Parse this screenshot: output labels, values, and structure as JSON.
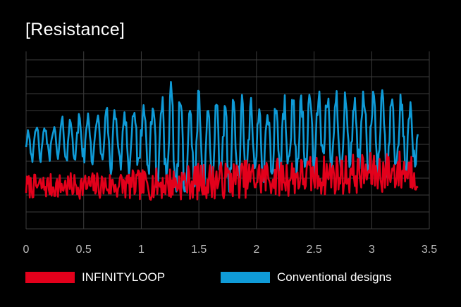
{
  "chart_data": {
    "type": "line",
    "title": "[Resistance]",
    "xlabel": "",
    "ylabel": "",
    "xlim": [
      0,
      3.5
    ],
    "ylim": [
      0,
      10.5
    ],
    "x_ticks": [
      "0",
      "0.5",
      "1",
      "1.5",
      "2",
      "2.5",
      "3",
      "3.5"
    ],
    "grid": true,
    "legend_position": "bottom",
    "series": [
      {
        "name": "INFINITYLOOP",
        "color": "#e3001b",
        "x_range": [
          0,
          3.4
        ],
        "amplitude_envelope": [
          [
            0,
            1.2
          ],
          [
            0.5,
            1.3
          ],
          [
            1.0,
            1.5
          ],
          [
            1.5,
            1.8
          ],
          [
            2.0,
            1.9
          ],
          [
            2.5,
            2.0
          ],
          [
            3.0,
            2.0
          ],
          [
            3.4,
            2.2
          ]
        ],
        "baseline": [
          [
            0,
            2.5
          ],
          [
            1.0,
            2.6
          ],
          [
            2.0,
            3.0
          ],
          [
            3.0,
            3.3
          ],
          [
            3.4,
            3.5
          ]
        ],
        "range": [
          1.0,
          4.8
        ]
      },
      {
        "name": "Conventional designs",
        "color": "#0f9bd7",
        "x_range": [
          0,
          3.4
        ],
        "baseline": [
          [
            0,
            5.0
          ],
          [
            0.5,
            5.4
          ],
          [
            1.0,
            5.3
          ],
          [
            1.5,
            4.8
          ],
          [
            2.0,
            5.1
          ],
          [
            2.5,
            5.8
          ],
          [
            3.0,
            5.7
          ],
          [
            3.4,
            5.4
          ]
        ],
        "amplitude_envelope": [
          [
            0,
            1.2
          ],
          [
            0.5,
            1.8
          ],
          [
            1.0,
            3.0
          ],
          [
            1.3,
            4.3
          ],
          [
            1.5,
            4.0
          ],
          [
            2.0,
            3.0
          ],
          [
            2.5,
            3.0
          ],
          [
            3.0,
            3.2
          ],
          [
            3.4,
            2.7
          ]
        ],
        "range": [
          2.2,
          9.5
        ]
      }
    ]
  },
  "legend": {
    "items": [
      {
        "label": "INFINITYLOOP",
        "color": "#e3001b"
      },
      {
        "label": "Conventional designs",
        "color": "#0f9bd7"
      }
    ]
  }
}
